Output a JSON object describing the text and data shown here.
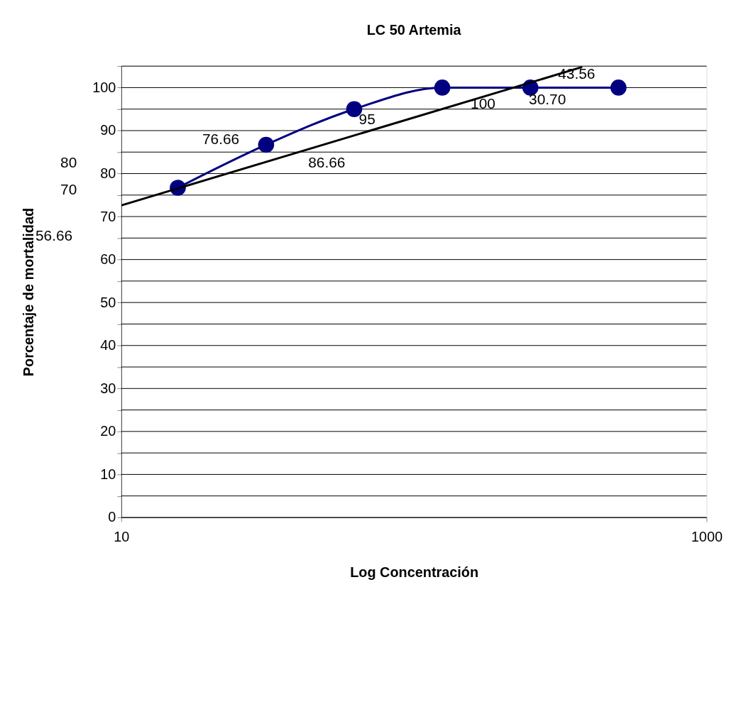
{
  "chart_data": {
    "type": "line",
    "title": "LC 50 Artemia",
    "xlabel": "Log Concentración",
    "ylabel": "Porcentaje de mortalidad",
    "log": "x",
    "xlim": [
      10,
      1000
    ],
    "xticks": [
      10,
      1000
    ],
    "ylim": [
      0,
      105
    ],
    "yticks": [
      0,
      {
        "value": 5,
        "label": null
      },
      10,
      {
        "value": 15,
        "label": null
      },
      20,
      {
        "value": 25,
        "label": null
      },
      30,
      {
        "value": 35,
        "label": null
      },
      40,
      {
        "value": 45,
        "label": null
      },
      50,
      {
        "value": 55,
        "label": null
      },
      60,
      {
        "value": 65,
        "label": null
      },
      70,
      {
        "value": 75,
        "label": null
      },
      80,
      {
        "value": 85,
        "label": null
      },
      90,
      {
        "value": 95,
        "label": null
      },
      100,
      {
        "value": 105,
        "label": null
      }
    ],
    "grid": "y",
    "marker": "circle",
    "series": [
      {
        "color": "#000080",
        "x": [
          15.6,
          31.25,
          62.5,
          125,
          250,
          500
        ],
        "values": [
          76.7,
          86.7,
          95,
          100,
          100,
          100
        ]
      },
      {
        "type": "line",
        "marker": "none",
        "color": "#000000",
        "x": [
          10,
          376
        ],
        "values": [
          72.6,
          104.8
        ]
      }
    ],
    "annotations": [
      "56.66",
      "70",
      "80",
      "76.66",
      "86.66",
      "95",
      "100",
      "30.70",
      "43.56"
    ]
  }
}
